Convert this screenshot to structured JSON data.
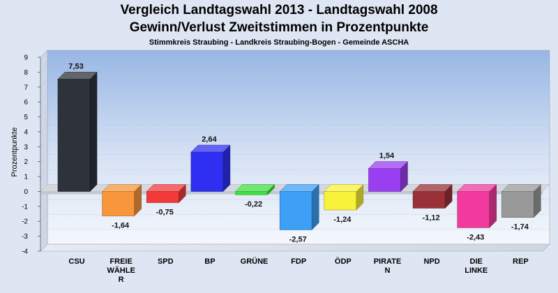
{
  "header": {
    "title_line1": "Vergleich Landtagswahl 2013 - Landtagswahl 2008",
    "title_line2": "Gewinn/Verlust Zweitstimmen in Prozentpunkte",
    "subtitle": "Stimmkreis Straubing - Landkreis Straubing-Bogen - Gemeinde ASCHA"
  },
  "chart_data": {
    "type": "bar",
    "title": "Vergleich Landtagswahl 2013 - Landtagswahl 2008 / Gewinn/Verlust Zweitstimmen in Prozentpunkte",
    "subtitle": "Stimmkreis Straubing - Landkreis Straubing-Bogen - Gemeinde ASCHA",
    "xlabel": "",
    "ylabel": "Prozentpunkte",
    "ylim": [
      -4,
      9
    ],
    "yticks": [
      9,
      8,
      7,
      6,
      5,
      4,
      3,
      2,
      1,
      0,
      -1,
      -2,
      -3,
      -4
    ],
    "grid": true,
    "legend": "none",
    "bars": [
      {
        "label": [
          "CSU"
        ],
        "value": 7.53,
        "value_label": "7,53",
        "color": "#2e323b"
      },
      {
        "label": [
          "FREIE",
          "WÄHLE",
          "R"
        ],
        "value": -1.64,
        "value_label": "-1,64",
        "color": "#f7963a"
      },
      {
        "label": [
          "SPD"
        ],
        "value": -0.75,
        "value_label": "-0,75",
        "color": "#f23a3a"
      },
      {
        "label": [
          "BP"
        ],
        "value": 2.64,
        "value_label": "2,64",
        "color": "#2f2ff2"
      },
      {
        "label": [
          "GRÜNE"
        ],
        "value": -0.22,
        "value_label": "-0,22",
        "color": "#3fe03f"
      },
      {
        "label": [
          "FDP"
        ],
        "value": -2.57,
        "value_label": "-2,57",
        "color": "#3d9ff5"
      },
      {
        "label": [
          "ÖDP"
        ],
        "value": -1.24,
        "value_label": "-1,24",
        "color": "#f9f23a"
      },
      {
        "label": [
          "PIRATE",
          "N"
        ],
        "value": 1.54,
        "value_label": "1,54",
        "color": "#9a3ef2"
      },
      {
        "label": [
          "NPD"
        ],
        "value": -1.12,
        "value_label": "-1,12",
        "color": "#9a3038"
      },
      {
        "label": [
          "DIE",
          "LINKE"
        ],
        "value": -2.43,
        "value_label": "-2,43",
        "color": "#f23a9e"
      },
      {
        "label": [
          "REP"
        ],
        "value": -1.74,
        "value_label": "-1,74",
        "color": "#999999"
      }
    ]
  }
}
